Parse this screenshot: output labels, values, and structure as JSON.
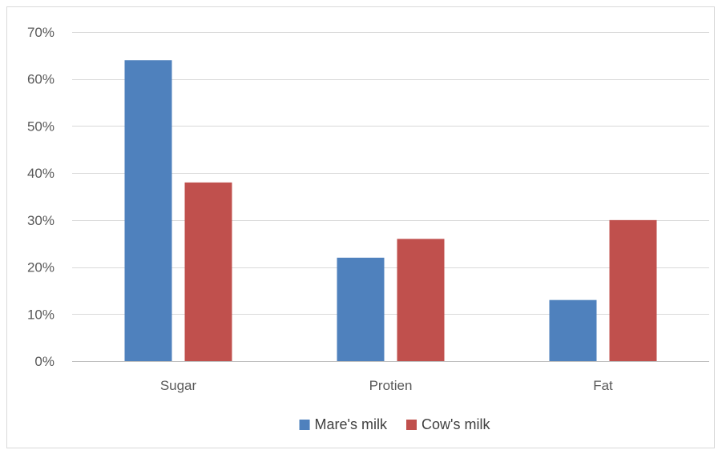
{
  "chart_data": {
    "type": "bar",
    "title": "",
    "xlabel": "",
    "ylabel": "",
    "categories": [
      "Sugar",
      "Protien",
      "Fat"
    ],
    "series": [
      {
        "name": "Mare's milk",
        "color": "#4f81bd",
        "values": [
          0.64,
          0.22,
          0.13
        ]
      },
      {
        "name": "Cow's milk",
        "color": "#c0504d",
        "values": [
          0.38,
          0.26,
          0.3
        ]
      }
    ],
    "ylim": [
      0,
      0.7
    ],
    "yticks": [
      0,
      0.1,
      0.2,
      0.3,
      0.4,
      0.5,
      0.6,
      0.7
    ],
    "ytick_labels": [
      "0%",
      "10%",
      "20%",
      "30%",
      "40%",
      "50%",
      "60%",
      "70%"
    ],
    "grid": true,
    "legend_position": "bottom"
  }
}
